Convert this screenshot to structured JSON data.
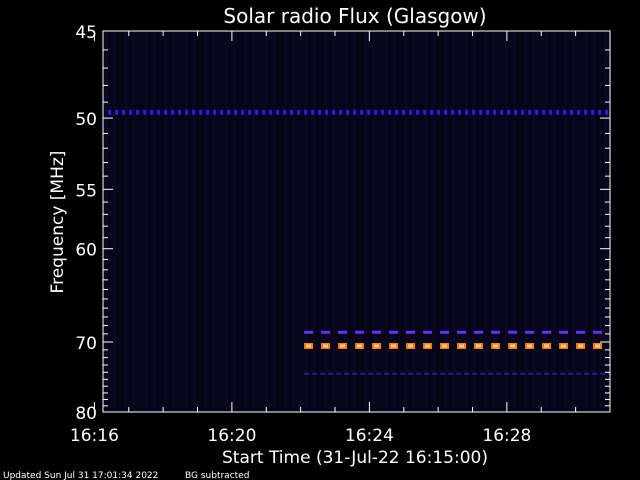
{
  "chart_data": {
    "type": "heatmap",
    "title": "Solar radio Flux (Glasgow)",
    "xlabel": "Start Time (31-Jul-22 16:15:00)",
    "ylabel": "Frequency [MHz]",
    "x_range_minutes": [
      16.25,
      31.0
    ],
    "x_ticks": [
      {
        "label": "16:16",
        "minutes": 16
      },
      {
        "label": "16:20",
        "minutes": 20
      },
      {
        "label": "16:24",
        "minutes": 24
      },
      {
        "label": "16:28",
        "minutes": 28
      }
    ],
    "y_range": [
      45,
      80
    ],
    "y_ticks": [
      45,
      50,
      55,
      60,
      70,
      80
    ],
    "y_tick_labels": [
      "45",
      "50",
      "55",
      "60",
      "70",
      "80"
    ],
    "features": [
      {
        "freq_mhz": 49.6,
        "start_min": 16.4,
        "end_min": 31.0,
        "color": "#2a1cff",
        "style": "dotted"
      },
      {
        "freq_mhz": 68.8,
        "start_min": 22.1,
        "end_min": 31.0,
        "color": "#6a2cff",
        "style": "dashed"
      },
      {
        "freq_mhz": 70.5,
        "start_min": 22.1,
        "end_min": 31.0,
        "color": "#ff7a18",
        "style": "dashed-bright"
      },
      {
        "freq_mhz": 74.2,
        "start_min": 22.1,
        "end_min": 31.0,
        "color": "#241a90",
        "style": "faint"
      }
    ],
    "background_color": "#05061a"
  },
  "footer": {
    "updated": "Updated Sun Jul 31 17:01:34 2022",
    "note": "BG subtracted"
  }
}
